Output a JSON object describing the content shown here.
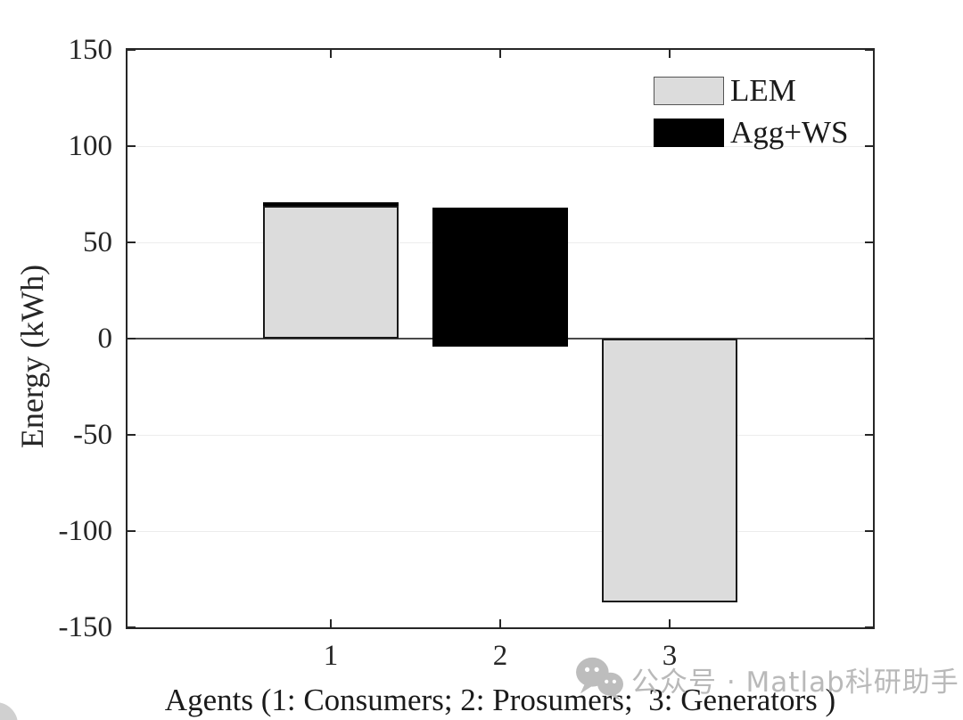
{
  "chart_data": {
    "type": "bar",
    "title": "",
    "xlabel": "Agents (1: Consumers; 2: Prosumers;  3: Generators )",
    "ylabel": "Energy (kWh)",
    "xlim": [
      -0.2,
      4.2
    ],
    "ylim": [
      -150,
      150
    ],
    "x_ticks": [
      1,
      2,
      3
    ],
    "y_ticks": [
      150,
      100,
      50,
      0,
      -50,
      -100,
      -150
    ],
    "grid": "horizontal-only",
    "bar_width": 0.8,
    "background": "#ffffff",
    "axis_color": "#262626",
    "grid_color": "#ececec",
    "zero_line_color": "#4a4a4a",
    "categories": [
      "1",
      "2",
      "3"
    ],
    "series": [
      {
        "name": "LEM",
        "color": "#dcdcdc",
        "values": [
          69,
          null,
          -137
        ]
      },
      {
        "name": "Agg+WS",
        "color": "#000000",
        "values": [
          71,
          68,
          null
        ]
      }
    ],
    "bars": [
      {
        "series": "Agg+WS",
        "agent": 1,
        "x": 1,
        "from": 0,
        "to": 71,
        "fill": "#000000"
      },
      {
        "series": "LEM",
        "agent": 1,
        "x": 1,
        "from": 0,
        "to": 69,
        "fill": "#dcdcdc"
      },
      {
        "series": "Agg+WS",
        "agent": 2,
        "x": 2,
        "from": -4,
        "to": 68,
        "fill": "#000000"
      },
      {
        "series": "LEM",
        "agent": 3,
        "x": 3,
        "from": 0,
        "to": -137,
        "fill": "#dcdcdc"
      }
    ],
    "legend": {
      "position": "top-right",
      "entries": [
        {
          "label": "LEM",
          "color": "#dcdcdc"
        },
        {
          "label": "Agg+WS",
          "color": "#000000"
        }
      ]
    }
  },
  "watermark": {
    "icon": "wechat-icon",
    "text": "公众号 · Matlab科研助手",
    "color": "#b9b9b9"
  }
}
